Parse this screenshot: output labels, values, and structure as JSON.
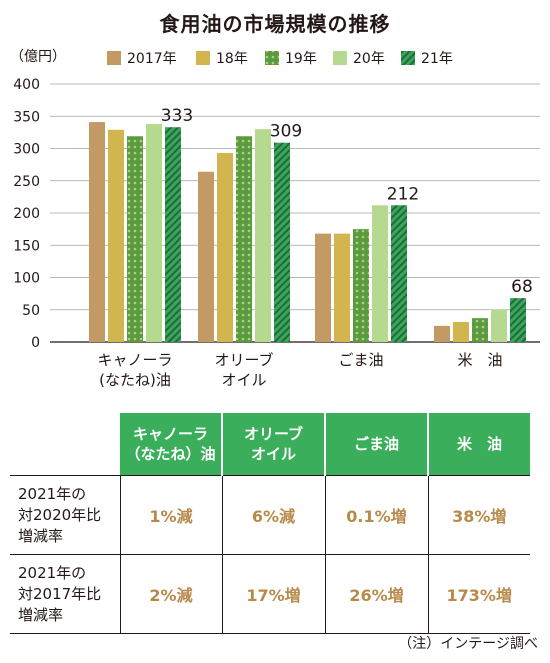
{
  "chart_data": {
    "type": "bar",
    "title": "食用油の市場規模の推移",
    "ylabel": "（億円）",
    "ylim": [
      0,
      400
    ],
    "yticks": [
      0,
      50,
      100,
      150,
      200,
      250,
      300,
      350,
      400
    ],
    "grid": true,
    "legend_position": "top",
    "categories": [
      [
        "キャノーラ",
        "(なたね)油"
      ],
      [
        "オリーブ",
        "オイル"
      ],
      [
        "ごま油"
      ],
      [
        "米　油"
      ]
    ],
    "series": [
      {
        "name": "2017年",
        "values": [
          341,
          264,
          168,
          25
        ],
        "color": "#c39a63",
        "pattern": "solid"
      },
      {
        "name": "18年",
        "values": [
          329,
          293,
          168,
          31
        ],
        "color": "#d2b54f",
        "pattern": "solid"
      },
      {
        "name": "19年",
        "values": [
          319,
          319,
          175,
          37
        ],
        "color": "#5b9a3d",
        "pattern": "dots"
      },
      {
        "name": "20年",
        "values": [
          338,
          330,
          212,
          50
        ],
        "color": "#b4d98f",
        "pattern": "solid"
      },
      {
        "name": "21年",
        "values": [
          333,
          309,
          212,
          68
        ],
        "color": "#3aa55c",
        "pattern": "stripes"
      }
    ],
    "data_labels": [
      {
        "category": 0,
        "series": 4,
        "text": "333"
      },
      {
        "category": 1,
        "series": 4,
        "text": "309"
      },
      {
        "category": 2,
        "series": 4,
        "text": "212"
      },
      {
        "category": 3,
        "series": 4,
        "text": "68"
      }
    ]
  },
  "table": {
    "headers": [
      [
        "キャノーラ",
        "（なたね）油"
      ],
      [
        "オリーブ",
        "オイル"
      ],
      [
        "ごま油"
      ],
      [
        "米　油"
      ]
    ],
    "rows": [
      {
        "label": [
          "2021年の",
          "対2020年比",
          "増減率"
        ],
        "values": [
          "1%減",
          "6%減",
          "0.1%増",
          "38%増"
        ]
      },
      {
        "label": [
          "2021年の",
          "対2017年比",
          "増減率"
        ],
        "values": [
          "2%減",
          "17%増",
          "26%増",
          "173%増"
        ]
      }
    ]
  },
  "note": "（注）インテージ調べ"
}
